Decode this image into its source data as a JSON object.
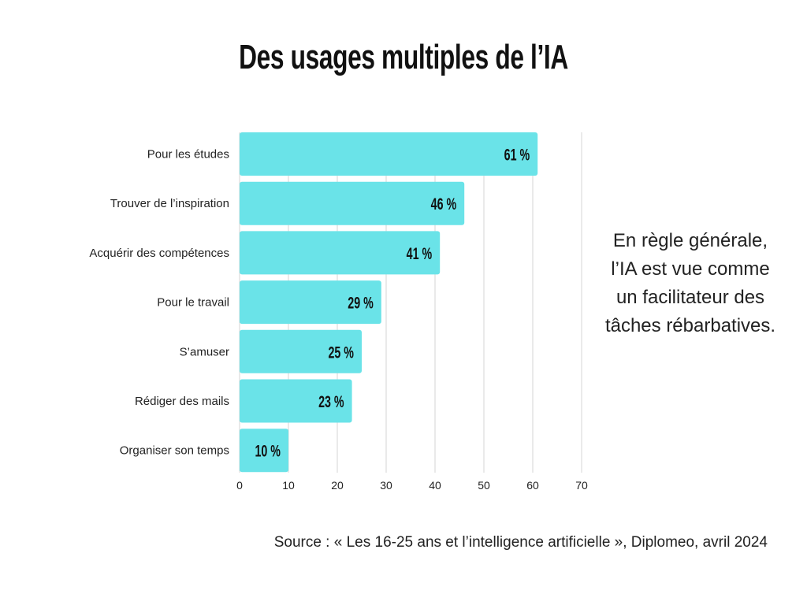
{
  "chart_data": {
    "type": "bar",
    "orientation": "horizontal",
    "title": "Des usages multiples de l’IA",
    "categories": [
      "Pour les études",
      "Trouver de l’inspiration",
      "Acquérir des compétences",
      "Pour le travail",
      "S’amuser",
      "Rédiger des mails",
      "Organiser son temps"
    ],
    "values": [
      61,
      46,
      41,
      29,
      25,
      23,
      10
    ],
    "value_labels": [
      "61 %",
      "46 %",
      "41 %",
      "29 %",
      "25 %",
      "23 %",
      "10 %"
    ],
    "xlim": [
      0,
      70
    ],
    "xticks": [
      0,
      10,
      20,
      30,
      40,
      50,
      60,
      70
    ],
    "xlabel": "",
    "ylabel": "",
    "grid": true,
    "bar_color": "#6ae3e8",
    "grid_color": "#d6d6d6"
  },
  "annotation": "En règle générale, l’IA est vue comme un facilitateur des tâches rébarbatives.",
  "source": "Source : « Les 16-25 ans et l’intelligence artificielle », Diplomeo, avril 2024"
}
